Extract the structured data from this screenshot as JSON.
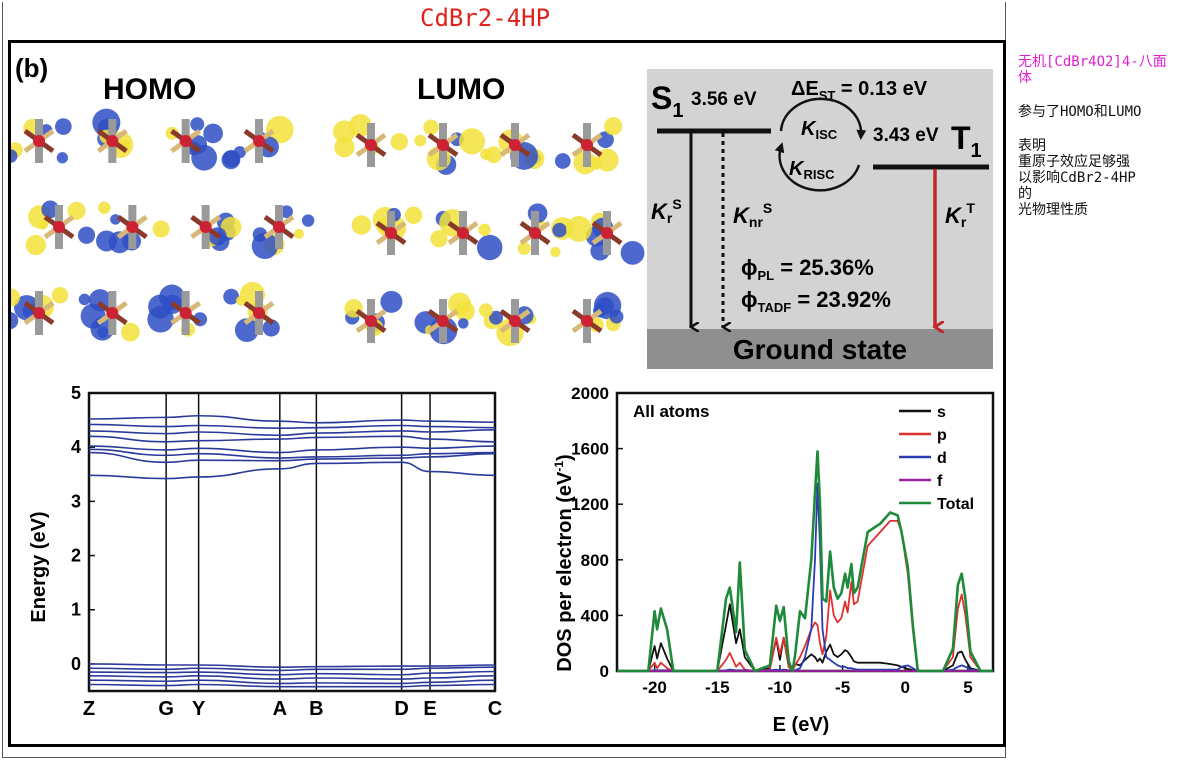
{
  "page": {
    "title": "CdBr2-4HP",
    "notes": {
      "n1": "无机[CdBr4O2]4-八面体",
      "n2": "参与了HOMO和LUMO",
      "n3_l1": "表明",
      "n3_l2": "重原子效应足够强",
      "n3_l3": "以影响CdBr2-4HP",
      "n3_l4": "的",
      "n3_l5": "光物理性质"
    }
  },
  "figure": {
    "panel_label": "(b)",
    "homo_label": "HOMO",
    "lumo_label": "LUMO",
    "energy_diagram": {
      "s1_label": "S",
      "s1_sub": "1",
      "s1_energy": "3.56 eV",
      "t1_label": "T",
      "t1_sub": "1",
      "t1_energy": "3.43 eV",
      "delta_prefix": "ΔE",
      "delta_sub": "ST",
      "delta_value": " = 0.13 eV",
      "k_isc": "ISC",
      "k_risc": "RISC",
      "k": "K",
      "kr_s_sub": "r",
      "kr_s_sup": "S",
      "knr_s_sub": "nr",
      "knr_s_sup": "S",
      "kr_t_sub": "r",
      "kr_t_sup": "T",
      "phi": "ϕ",
      "phi_pl_sub": "PL",
      "phi_pl_value": " = 25.36%",
      "phi_tadf_sub": "TADF",
      "phi_tadf_value": " = 23.92%",
      "ground": "Ground state",
      "colors": {
        "panel_bg": "#d3d3d3",
        "ground_bg": "#8f8f8f",
        "kt_arrow": "#c0262c"
      }
    },
    "band_chart_text": {
      "ylabel": "Energy (eV)",
      "y_ticks": [
        "5",
        "4",
        "3",
        "2",
        "1",
        "0"
      ],
      "k_points": [
        "Z",
        "G",
        "Y",
        "A",
        "B",
        "D",
        "E",
        "C"
      ]
    },
    "dos_chart_text": {
      "annotation": "All atoms",
      "ylabel": "DOS per electron (eV",
      "ylabel_sup": "-1",
      "xlabel": "E (eV)",
      "y_ticks": [
        "2000",
        "1600",
        "1200",
        "800",
        "400",
        "0"
      ],
      "x_ticks": [
        "-20",
        "-15",
        "-10",
        "-5",
        "0",
        "5"
      ],
      "legend": [
        "s",
        "p",
        "d",
        "f",
        "Total"
      ]
    }
  },
  "chart_data": [
    {
      "type": "line",
      "title": "",
      "xlabel": "",
      "ylabel": "Energy (eV)",
      "ylim": [
        -0.5,
        5
      ],
      "x_categories": [
        "Z",
        "G",
        "Y",
        "A",
        "B",
        "D",
        "E",
        "C"
      ],
      "series_color": "#2b3a9a",
      "conduction_bands_approx": [
        [
          4.52,
          4.55,
          4.58,
          4.48,
          4.45,
          4.5,
          4.48,
          4.46
        ],
        [
          4.42,
          4.38,
          4.4,
          4.35,
          4.36,
          4.4,
          4.38,
          4.36
        ],
        [
          4.3,
          4.25,
          4.28,
          4.22,
          4.26,
          4.3,
          4.28,
          4.32
        ],
        [
          4.2,
          4.1,
          4.12,
          4.15,
          4.18,
          4.2,
          4.15,
          4.1
        ],
        [
          4.02,
          3.95,
          3.98,
          3.9,
          3.95,
          4.0,
          3.98,
          4.02
        ],
        [
          3.96,
          3.85,
          3.88,
          3.8,
          3.82,
          3.85,
          3.88,
          3.9
        ],
        [
          3.9,
          3.72,
          3.76,
          3.75,
          3.78,
          3.8,
          3.82,
          3.88
        ],
        [
          3.48,
          3.42,
          3.45,
          3.6,
          3.7,
          3.72,
          3.55,
          3.48
        ]
      ],
      "valence_bands_approx": [
        [
          0.0,
          -0.02,
          -0.02,
          -0.06,
          -0.05,
          -0.04,
          -0.04,
          -0.02
        ],
        [
          -0.08,
          -0.1,
          -0.08,
          -0.12,
          -0.1,
          -0.1,
          -0.08,
          -0.06
        ],
        [
          -0.15,
          -0.16,
          -0.15,
          -0.2,
          -0.18,
          -0.2,
          -0.17,
          -0.14
        ],
        [
          -0.22,
          -0.24,
          -0.22,
          -0.28,
          -0.26,
          -0.28,
          -0.26,
          -0.22
        ],
        [
          -0.3,
          -0.32,
          -0.3,
          -0.36,
          -0.35,
          -0.36,
          -0.34,
          -0.3
        ],
        [
          -0.38,
          -0.4,
          -0.38,
          -0.42,
          -0.42,
          -0.42,
          -0.4,
          -0.38
        ]
      ]
    },
    {
      "type": "line",
      "title": "",
      "annotation": "All atoms",
      "xlabel": "E (eV)",
      "ylabel": "DOS per electron (eV-1)",
      "xlim": [
        -23,
        7
      ],
      "ylim": [
        0,
        2000
      ],
      "legend_position": "top-right",
      "x": [
        -23,
        -20.5,
        -20,
        -19.8,
        -19.5,
        -19,
        -18.5,
        -17,
        -15,
        -14.3,
        -14,
        -13.5,
        -13.2,
        -12.8,
        -12,
        -10.8,
        -10.3,
        -10,
        -9.7,
        -9.3,
        -9,
        -8.8,
        -8.4,
        -8,
        -7.5,
        -7.2,
        -7,
        -6.8,
        -6.6,
        -6.3,
        -6,
        -5.7,
        -5.4,
        -5.1,
        -4.8,
        -4.6,
        -4.3,
        -4.1,
        -3.8,
        -3,
        -2,
        -1.2,
        -0.6,
        -0.3,
        0.2,
        0.6,
        1,
        3,
        3.8,
        4.2,
        4.5,
        4.8,
        5.2,
        6,
        7
      ],
      "series": [
        {
          "name": "s",
          "color": "#111111",
          "values": [
            0,
            0,
            180,
            90,
            200,
            90,
            0,
            0,
            0,
            330,
            480,
            200,
            300,
            100,
            0,
            20,
            230,
            80,
            240,
            30,
            0,
            50,
            40,
            80,
            120,
            100,
            70,
            90,
            60,
            140,
            190,
            120,
            100,
            120,
            150,
            140,
            100,
            70,
            60,
            60,
            60,
            50,
            40,
            30,
            15,
            5,
            0,
            0,
            40,
            130,
            140,
            80,
            20,
            0,
            0
          ]
        },
        {
          "name": "p",
          "color": "#e03030",
          "values": [
            0,
            0,
            60,
            20,
            60,
            20,
            0,
            0,
            0,
            80,
            130,
            30,
            60,
            10,
            0,
            10,
            240,
            120,
            240,
            30,
            0,
            40,
            100,
            180,
            300,
            350,
            330,
            200,
            120,
            250,
            580,
            400,
            350,
            380,
            500,
            420,
            640,
            480,
            500,
            900,
            1000,
            1080,
            1080,
            1000,
            700,
            300,
            0,
            0,
            100,
            450,
            550,
            400,
            100,
            0,
            0
          ]
        },
        {
          "name": "d",
          "color": "#2a3cb0",
          "values": [
            0,
            0,
            5,
            5,
            5,
            5,
            0,
            0,
            0,
            5,
            10,
            5,
            5,
            5,
            0,
            5,
            10,
            5,
            10,
            5,
            0,
            5,
            20,
            100,
            300,
            800,
            1350,
            900,
            300,
            100,
            80,
            60,
            40,
            30,
            30,
            20,
            20,
            15,
            10,
            10,
            10,
            10,
            10,
            30,
            40,
            20,
            0,
            0,
            10,
            30,
            40,
            30,
            10,
            0,
            0
          ]
        },
        {
          "name": "f",
          "color": "#a020a0",
          "values": [
            0,
            0,
            0,
            0,
            0,
            0,
            0,
            0,
            0,
            0,
            0,
            0,
            0,
            0,
            0,
            0,
            0,
            0,
            0,
            0,
            0,
            0,
            0,
            0,
            0,
            0,
            0,
            0,
            0,
            0,
            0,
            0,
            0,
            0,
            0,
            0,
            0,
            0,
            0,
            0,
            0,
            0,
            0,
            0,
            0,
            0,
            0,
            0,
            0,
            0,
            0,
            0,
            0,
            0,
            0
          ]
        },
        {
          "name": "Total",
          "color": "#1f8a3a",
          "values": [
            0,
            0,
            430,
            300,
            450,
            300,
            0,
            0,
            0,
            520,
            600,
            280,
            780,
            150,
            0,
            40,
            470,
            360,
            460,
            70,
            0,
            110,
            430,
            380,
            800,
            1280,
            1580,
            1200,
            520,
            500,
            860,
            600,
            520,
            560,
            700,
            600,
            770,
            560,
            600,
            1000,
            1060,
            1140,
            1120,
            1000,
            750,
            330,
            0,
            0,
            160,
            620,
            700,
            520,
            140,
            0,
            0
          ]
        }
      ]
    }
  ]
}
